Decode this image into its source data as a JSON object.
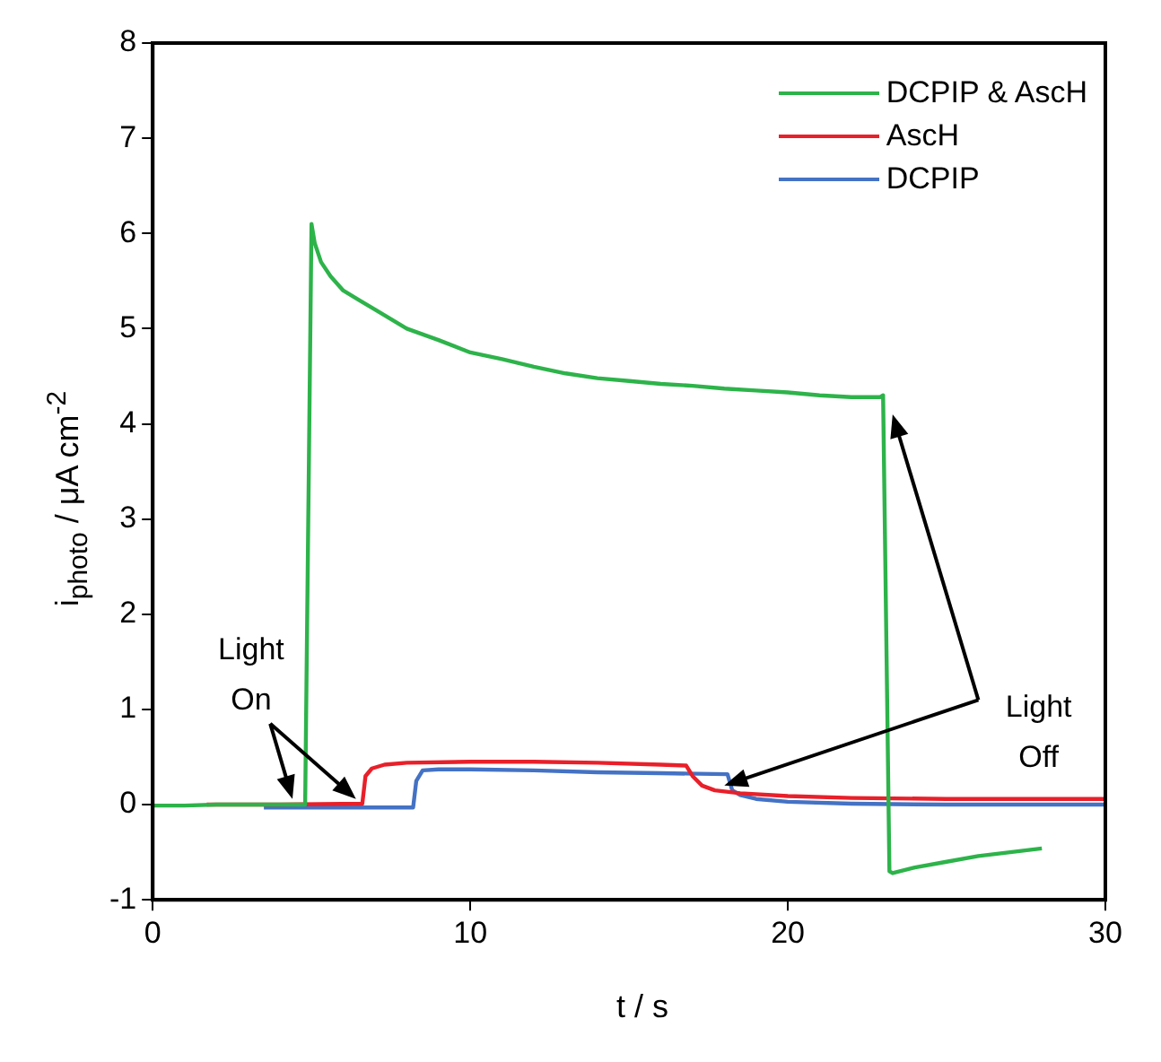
{
  "chart_data": {
    "type": "line",
    "xlabel": "t / s",
    "ylabel": "i$_{photo}$ / μA cm$^{-2}$",
    "xlim": [
      0,
      30
    ],
    "xticks": [
      0,
      10,
      20,
      30
    ],
    "ylim": [
      -1,
      8
    ],
    "yticks": [
      -1,
      0,
      1,
      2,
      3,
      4,
      5,
      6,
      7,
      8
    ],
    "legend": "top right",
    "marker": "none",
    "line_style": "solid",
    "annotations": [
      {
        "text": "Light On",
        "x": 4.9,
        "y": 0
      },
      {
        "text": "Light Off",
        "x": 18.0,
        "y": 0.2
      }
    ],
    "series": [
      {
        "name": "DCPIP & AscH",
        "color": "#2db34a",
        "x": [
          0,
          1,
          2,
          3,
          4,
          4.8,
          5.0,
          5.1,
          5.3,
          5.6,
          6,
          6.5,
          7,
          8,
          9,
          10,
          11,
          12,
          13,
          14,
          15,
          16,
          17,
          18,
          19,
          20,
          21,
          22,
          22.9,
          23.0,
          23.2,
          23.3,
          24,
          25,
          26,
          27,
          28
        ],
        "values": [
          -0.01,
          -0.01,
          0,
          0,
          0,
          0,
          6.1,
          5.9,
          5.7,
          5.55,
          5.4,
          5.3,
          5.2,
          5.0,
          4.88,
          4.75,
          4.68,
          4.6,
          4.53,
          4.48,
          4.45,
          4.42,
          4.4,
          4.37,
          4.35,
          4.33,
          4.3,
          4.28,
          4.28,
          4.3,
          -0.7,
          -0.72,
          -0.66,
          -0.6,
          -0.54,
          -0.5,
          -0.46
        ]
      },
      {
        "name": "AscH",
        "color": "#e8202a",
        "x": [
          1.7,
          4,
          6.6,
          6.7,
          6.9,
          7.3,
          8,
          10,
          12,
          14,
          16,
          16.8,
          17.0,
          17.3,
          17.7,
          18.5,
          20,
          22,
          25,
          30
        ],
        "values": [
          0,
          0,
          0.01,
          0.3,
          0.38,
          0.42,
          0.44,
          0.45,
          0.45,
          0.44,
          0.42,
          0.41,
          0.3,
          0.2,
          0.15,
          0.12,
          0.09,
          0.07,
          0.06,
          0.06
        ]
      },
      {
        "name": "DCPIP",
        "color": "#4472c4",
        "x": [
          3.5,
          6,
          8.2,
          8.3,
          8.5,
          9,
          10,
          12,
          14,
          16,
          18.1,
          18.25,
          18.5,
          19,
          20,
          22,
          25,
          30
        ],
        "values": [
          -0.03,
          -0.03,
          -0.03,
          0.25,
          0.36,
          0.37,
          0.37,
          0.36,
          0.34,
          0.33,
          0.32,
          0.15,
          0.1,
          0.06,
          0.03,
          0.01,
          0,
          0
        ]
      }
    ]
  }
}
